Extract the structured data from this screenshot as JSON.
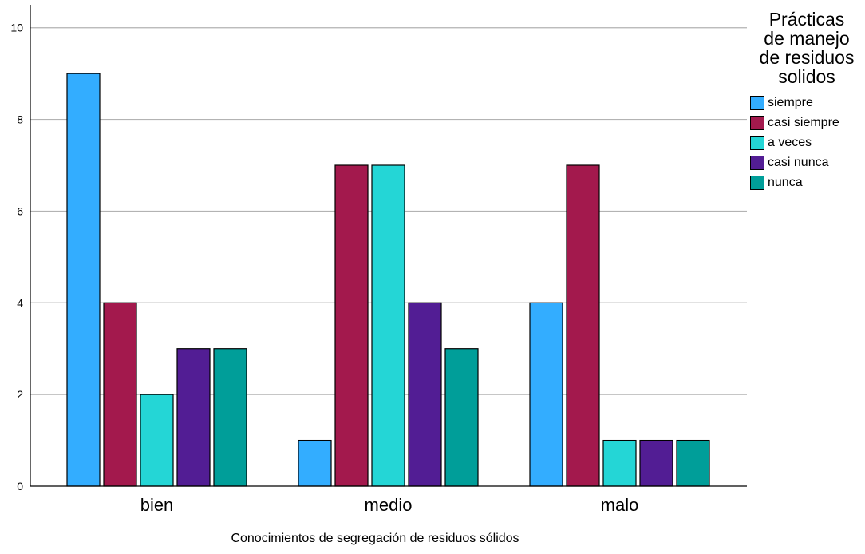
{
  "chart_data": {
    "type": "bar",
    "title": "",
    "xlabel": "Conocimientos de segregación de residuos sólidos",
    "ylabel": "",
    "ylim": [
      0,
      10.5
    ],
    "yticks": [
      0,
      2,
      4,
      6,
      8,
      10
    ],
    "grid": "horizontal",
    "legend_placement": "right",
    "legend_title_lines": [
      "Prácticas",
      "de manejo",
      "de residuos",
      "solidos"
    ],
    "categories": [
      "bien",
      "medio",
      "malo"
    ],
    "series": [
      {
        "name": "siempre",
        "color": "#33adff",
        "values": [
          9,
          1,
          4
        ]
      },
      {
        "name": "casi siempre",
        "color": "#a3194d",
        "values": [
          4,
          7,
          7
        ]
      },
      {
        "name": "a veces",
        "color": "#24d6d6",
        "values": [
          2,
          7,
          1
        ]
      },
      {
        "name": "casi nunca",
        "color": "#521d94",
        "values": [
          3,
          4,
          1
        ]
      },
      {
        "name": "nunca",
        "color": "#009e99",
        "values": [
          3,
          3,
          1
        ]
      }
    ]
  }
}
